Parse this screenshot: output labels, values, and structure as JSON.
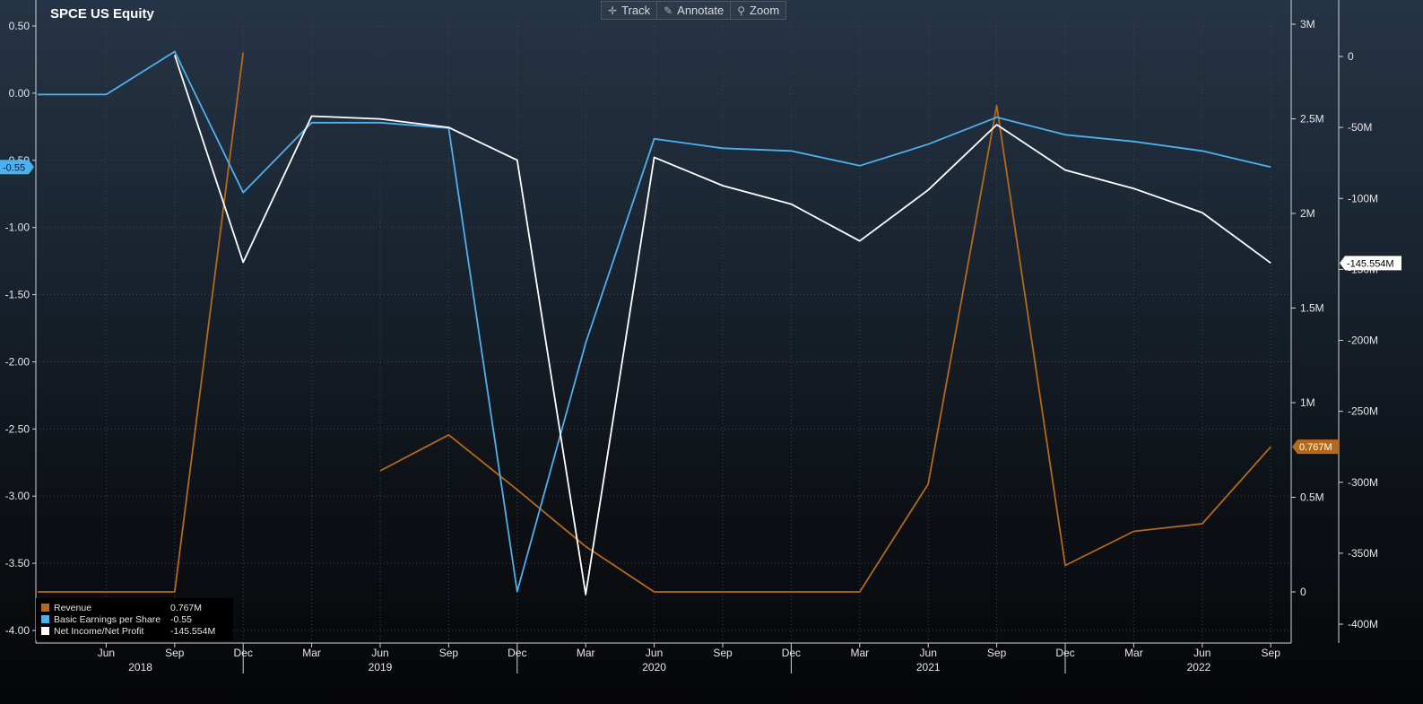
{
  "header": {
    "title": "SPCE US Equity",
    "toolbar": [
      {
        "label": "Track",
        "icon": "crosshair-icon"
      },
      {
        "label": "Annotate",
        "icon": "pencil-icon"
      },
      {
        "label": "Zoom",
        "icon": "magnifier-icon"
      }
    ]
  },
  "legend": [
    {
      "name": "Revenue",
      "value": "0.767M",
      "color": "#b5691a"
    },
    {
      "name": "Basic Earnings per Share",
      "value": "-0.55",
      "color": "#4fb0ee"
    },
    {
      "name": "Net Income/Net Profit",
      "value": "-145.554M",
      "color": "#ffffff"
    }
  ],
  "chart_data": {
    "type": "line",
    "x": [
      "2018-03",
      "2018-06",
      "2018-09",
      "2018-12",
      "2019-03",
      "2019-06",
      "2019-09",
      "2019-12",
      "2020-03",
      "2020-06",
      "2020-09",
      "2020-12",
      "2021-03",
      "2021-06",
      "2021-09",
      "2021-12",
      "2022-03",
      "2022-06",
      "2022-09"
    ],
    "x_tick_labels": [
      "Jun",
      "Sep",
      "Dec",
      "Mar",
      "Jun",
      "Sep",
      "Dec",
      "Mar",
      "Jun",
      "Sep",
      "Dec",
      "Mar",
      "Jun",
      "Sep",
      "Dec",
      "Mar",
      "Jun",
      "Sep"
    ],
    "year_labels": [
      "2018",
      "2019",
      "2020",
      "2021",
      "2022"
    ],
    "series": [
      {
        "name": "Revenue",
        "axis": "right1",
        "color": "#b5691a",
        "values": [
          0,
          0,
          0,
          2.85,
          null,
          0.64,
          0.83,
          0.54,
          0.24,
          0,
          0,
          0,
          0,
          0.57,
          2.57,
          0.14,
          0.32,
          0.36,
          0.767
        ]
      },
      {
        "name": "Basic Earnings per Share",
        "axis": "left",
        "color": "#4fb0ee",
        "values": [
          -0.01,
          -0.01,
          0.31,
          -0.74,
          -0.22,
          -0.22,
          -0.26,
          -3.71,
          -1.86,
          -0.34,
          -0.41,
          -0.43,
          -0.54,
          -0.38,
          -0.18,
          -0.31,
          -0.36,
          -0.43,
          -0.55
        ]
      },
      {
        "name": "Net Income/Net Profit",
        "axis": "right2",
        "color": "#ffffff",
        "values": [
          1,
          null,
          1,
          -145,
          -42,
          -44,
          -50,
          -73,
          -379,
          -71,
          -91,
          -104,
          -130,
          -94,
          -48,
          -80,
          -93,
          -110,
          -145.554
        ]
      }
    ],
    "axes": {
      "left": {
        "ticks": [
          "0.50",
          "0.00",
          "-0.50",
          "-1.00",
          "-1.50",
          "-2.00",
          "-2.50",
          "-3.00",
          "-3.50",
          "-4.00"
        ],
        "range": [
          -4.0,
          0.5
        ]
      },
      "right1": {
        "ticks": [
          "3M",
          "2.5M",
          "2M",
          "1.5M",
          "1M",
          "0.5M",
          "0"
        ],
        "range": [
          0,
          3
        ]
      },
      "right2": {
        "ticks": [
          "0",
          "-50M",
          "-100M",
          "-150M",
          "-200M",
          "-250M",
          "-300M",
          "-350M",
          "-400M"
        ],
        "range": [
          -400,
          0
        ]
      }
    },
    "last_value_tags": {
      "left": "-0.55",
      "right1": "0.767M",
      "right2": "-145.554M"
    },
    "grid": true,
    "legend_placement": "bottom-left"
  }
}
